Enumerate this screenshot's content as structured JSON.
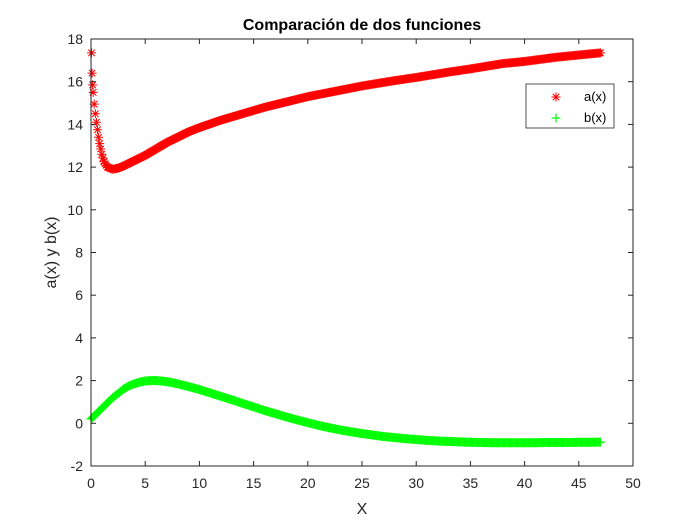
{
  "chart_data": {
    "type": "scatter",
    "title": "Comparación de dos funciones",
    "xlabel": "X",
    "ylabel": "a(x) y b(x)",
    "xlim": [
      0,
      50
    ],
    "ylim": [
      -2,
      18
    ],
    "xticks": [
      0,
      5,
      10,
      15,
      20,
      25,
      30,
      35,
      40,
      45,
      50
    ],
    "yticks": [
      -2,
      0,
      2,
      4,
      6,
      8,
      10,
      12,
      14,
      16,
      18
    ],
    "grid": false,
    "legend_position": "top-right",
    "series": [
      {
        "name": "a(x)",
        "marker": "asterisk",
        "color": "#ff0000",
        "points": [
          [
            0.05,
            17.35
          ],
          [
            0.1,
            16.4
          ],
          [
            0.15,
            15.85
          ],
          [
            0.2,
            15.5
          ],
          [
            0.3,
            14.95
          ],
          [
            0.4,
            14.5
          ],
          [
            0.5,
            14.1
          ],
          [
            0.6,
            13.75
          ],
          [
            0.7,
            13.4
          ],
          [
            0.8,
            13.1
          ],
          [
            1,
            12.6
          ],
          [
            1.2,
            12.25
          ],
          [
            1.5,
            12.0
          ],
          [
            2,
            11.9
          ],
          [
            2.5,
            11.95
          ],
          [
            3,
            12.05
          ],
          [
            4,
            12.3
          ],
          [
            5,
            12.55
          ],
          [
            6,
            12.85
          ],
          [
            7,
            13.15
          ],
          [
            8,
            13.4
          ],
          [
            9,
            13.65
          ],
          [
            10,
            13.85
          ],
          [
            12,
            14.2
          ],
          [
            14,
            14.5
          ],
          [
            16,
            14.8
          ],
          [
            18,
            15.05
          ],
          [
            20,
            15.3
          ],
          [
            22,
            15.5
          ],
          [
            25,
            15.8
          ],
          [
            28,
            16.05
          ],
          [
            30,
            16.2
          ],
          [
            33,
            16.45
          ],
          [
            35,
            16.6
          ],
          [
            38,
            16.85
          ],
          [
            40,
            16.95
          ],
          [
            43,
            17.15
          ],
          [
            45,
            17.25
          ],
          [
            47,
            17.35
          ]
        ]
      },
      {
        "name": "b(x)",
        "marker": "plus",
        "color": "#00ff00",
        "points": [
          [
            0,
            0.2
          ],
          [
            0.5,
            0.45
          ],
          [
            1,
            0.7
          ],
          [
            1.5,
            0.95
          ],
          [
            2,
            1.2
          ],
          [
            2.5,
            1.4
          ],
          [
            3,
            1.6
          ],
          [
            3.5,
            1.75
          ],
          [
            4,
            1.85
          ],
          [
            4.5,
            1.93
          ],
          [
            5,
            1.98
          ],
          [
            5.5,
            2.0
          ],
          [
            6,
            2.0
          ],
          [
            6.5,
            1.98
          ],
          [
            7,
            1.95
          ],
          [
            8,
            1.85
          ],
          [
            9,
            1.72
          ],
          [
            10,
            1.58
          ],
          [
            11,
            1.42
          ],
          [
            12,
            1.26
          ],
          [
            13,
            1.1
          ],
          [
            14,
            0.93
          ],
          [
            15,
            0.77
          ],
          [
            16,
            0.6
          ],
          [
            17,
            0.45
          ],
          [
            18,
            0.3
          ],
          [
            19,
            0.16
          ],
          [
            20,
            0.03
          ],
          [
            21,
            -0.1
          ],
          [
            22,
            -0.21
          ],
          [
            23,
            -0.31
          ],
          [
            24,
            -0.4
          ],
          [
            25,
            -0.48
          ],
          [
            26,
            -0.55
          ],
          [
            27,
            -0.62
          ],
          [
            28,
            -0.67
          ],
          [
            29,
            -0.72
          ],
          [
            30,
            -0.76
          ],
          [
            31,
            -0.8
          ],
          [
            32,
            -0.83
          ],
          [
            33,
            -0.85
          ],
          [
            34,
            -0.87
          ],
          [
            35,
            -0.89
          ],
          [
            36,
            -0.9
          ],
          [
            37,
            -0.91
          ],
          [
            38,
            -0.91
          ],
          [
            39,
            -0.91
          ],
          [
            40,
            -0.91
          ],
          [
            41,
            -0.91
          ],
          [
            42,
            -0.9
          ],
          [
            43,
            -0.9
          ],
          [
            44,
            -0.9
          ],
          [
            45,
            -0.89
          ],
          [
            46,
            -0.89
          ],
          [
            47,
            -0.88
          ]
        ]
      }
    ]
  }
}
